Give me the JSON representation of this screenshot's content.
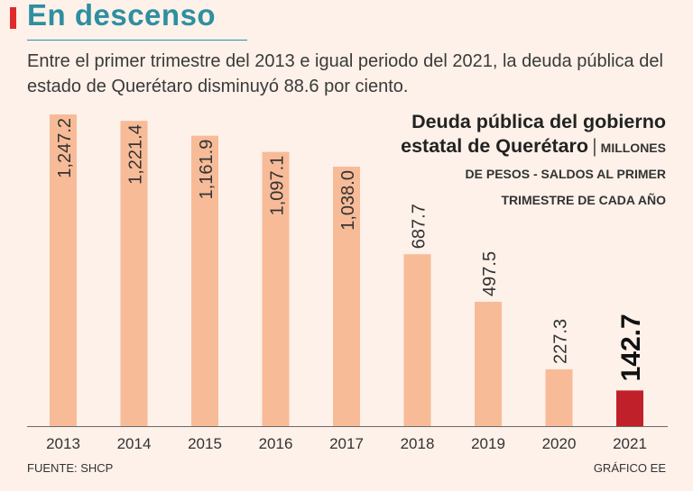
{
  "header": {
    "title": "En descenso",
    "subtitle": "Entre el primer trimestre del 2013 e igual periodo del 2021, la deuda pública del estado de Querétaro disminuyó 88.6 por ciento."
  },
  "legend": {
    "title": "Deuda pública del gobierno estatal de Querétaro",
    "separator": "|",
    "units": "MILLONES DE PESOS - SALDOS AL PRIMER TRIMESTRE DE CADA AÑO"
  },
  "footer": {
    "source": "FUENTE: SHCP",
    "credit": "GRÁFICO EE"
  },
  "colors": {
    "bar": "#f8bb98",
    "highlight": "#c0202a",
    "title": "#2e8fa0",
    "accent": "#e02a2a"
  },
  "chart_data": {
    "type": "bar",
    "title": "Deuda pública del gobierno estatal de Querétaro",
    "ylabel": "Millones de pesos",
    "xlabel": "",
    "categories": [
      "2013",
      "2014",
      "2015",
      "2016",
      "2017",
      "2018",
      "2019",
      "2020",
      "2021"
    ],
    "values": [
      1247.2,
      1221.4,
      1161.9,
      1097.1,
      1038.0,
      687.7,
      497.5,
      227.3,
      142.7
    ],
    "value_labels": [
      "1,247.2",
      "1,221.4",
      "1,161.9",
      "1,097.1",
      "1,038.0",
      "687.7",
      "497.5",
      "227.3",
      "142.7"
    ],
    "highlight_index": 8,
    "ylim": [
      0,
      1247.2
    ],
    "grid": false
  }
}
